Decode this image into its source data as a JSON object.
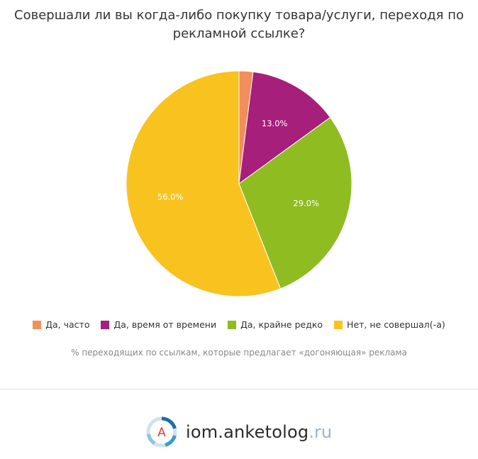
{
  "title": "Совершали ли вы когда-либо покупку товара/услуги, переходя по\nрекламной ссылке?",
  "chart_data": {
    "type": "pie",
    "title": "Совершали ли вы когда-либо покупку товара/услуги, переходя по рекламной ссылке?",
    "slices": [
      {
        "label": "Да, часто",
        "value": 2.0,
        "color": "#f28e5c",
        "data_label": ""
      },
      {
        "label": "Да, время от времени",
        "value": 13.0,
        "color": "#a51f7b",
        "data_label": "13.0%"
      },
      {
        "label": "Да, крайне редко",
        "value": 29.0,
        "color": "#8fbc21",
        "data_label": "29.0%"
      },
      {
        "label": "Нет, не совершал(-а)",
        "value": 56.0,
        "color": "#f9c31f",
        "data_label": "56.0%"
      }
    ],
    "legend_position": "bottom"
  },
  "caption": "% переходящих по ссылкам, которые предлагает «догоняющая» реклама",
  "footer": {
    "brand_name": "iom.anketolog",
    "brand_tld": ".ru",
    "logo_letter": "A",
    "logo_icon": "anketolog-logo-icon"
  }
}
